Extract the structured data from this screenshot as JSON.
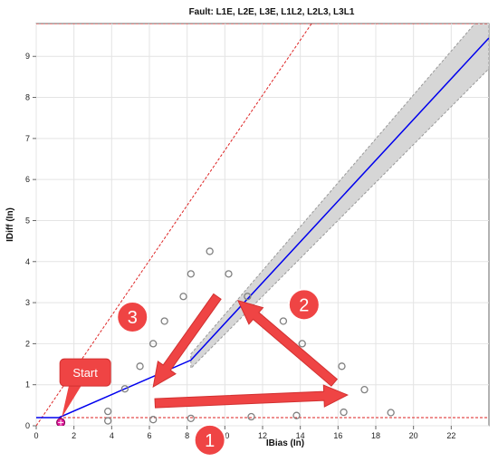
{
  "chart_data": {
    "type": "line",
    "title": "Fault: L1E, L2E, L3E, L1L2, L2L3, L3L1",
    "xlabel": "IBias (In)",
    "ylabel": "IDiff (In)",
    "xlim": [
      0,
      24
    ],
    "ylim": [
      0,
      9.8
    ],
    "xticks": [
      0,
      2,
      4,
      6,
      8,
      10,
      12,
      14,
      16,
      18,
      20,
      22
    ],
    "yticks": [
      0,
      1,
      2,
      3,
      4,
      5,
      6,
      7,
      8,
      9
    ],
    "grid": true,
    "series": [
      {
        "kind": "characteristic",
        "color": "#0000ee",
        "points": [
          [
            0,
            0.2
          ],
          [
            1.2,
            0.2
          ],
          [
            8.2,
            1.6
          ],
          [
            24,
            9.45
          ]
        ]
      },
      {
        "kind": "tolerance-band",
        "color": "#d6d6d6",
        "upper": [
          [
            8.2,
            1.75
          ],
          [
            24,
            10.2
          ]
        ],
        "lower": [
          [
            8.2,
            1.4
          ],
          [
            24,
            8.7
          ]
        ]
      },
      {
        "kind": "threshold-line",
        "color": "#dd2222",
        "points": [
          [
            0,
            0.2
          ],
          [
            24,
            0.2
          ]
        ]
      },
      {
        "kind": "threshold-line",
        "color": "#dd2222",
        "points": [
          [
            0,
            9.8
          ],
          [
            24,
            9.8
          ]
        ]
      },
      {
        "kind": "diagonal-limit",
        "color": "#dd2222",
        "points": [
          [
            0,
            0
          ],
          [
            14.6,
            9.8
          ]
        ]
      },
      {
        "kind": "test-points",
        "color": "#808080",
        "points": [
          [
            3.8,
            0.12
          ],
          [
            3.8,
            0.35
          ],
          [
            4.7,
            0.9
          ],
          [
            5.5,
            1.45
          ],
          [
            6.2,
            2.0
          ],
          [
            6.2,
            0.15
          ],
          [
            6.8,
            2.55
          ],
          [
            7.8,
            3.15
          ],
          [
            8.2,
            0.18
          ],
          [
            8.2,
            3.7
          ],
          [
            9.2,
            4.25
          ],
          [
            10.2,
            3.7
          ],
          [
            11.2,
            3.15
          ],
          [
            11.4,
            0.22
          ],
          [
            13.1,
            2.55
          ],
          [
            13.8,
            0.25
          ],
          [
            14.1,
            2.0
          ],
          [
            16.2,
            1.45
          ],
          [
            16.3,
            0.33
          ],
          [
            17.4,
            0.88
          ],
          [
            18.8,
            0.32
          ]
        ]
      },
      {
        "kind": "start-point",
        "color": "#e0199a",
        "points": [
          [
            1.3,
            0.08
          ]
        ]
      }
    ],
    "annotations": [
      {
        "kind": "arrow",
        "from": [
          6.3,
          0.55
        ],
        "to": [
          16.5,
          0.75
        ]
      },
      {
        "kind": "arrow",
        "from": [
          15.8,
          1.05
        ],
        "to": [
          10.7,
          3.05
        ]
      },
      {
        "kind": "arrow",
        "from": [
          9.6,
          3.15
        ],
        "to": [
          6.2,
          0.95
        ]
      },
      {
        "kind": "callout",
        "text": "1",
        "anchor": [
          9.2,
          -0.35
        ]
      },
      {
        "kind": "callout",
        "text": "2",
        "anchor": [
          14.2,
          2.95
        ]
      },
      {
        "kind": "callout",
        "text": "3",
        "anchor": [
          5.1,
          2.65
        ]
      },
      {
        "kind": "callout",
        "text": "Start",
        "anchor": [
          2.6,
          1.3
        ],
        "pointer": [
          1.35,
          0.2
        ]
      }
    ]
  }
}
